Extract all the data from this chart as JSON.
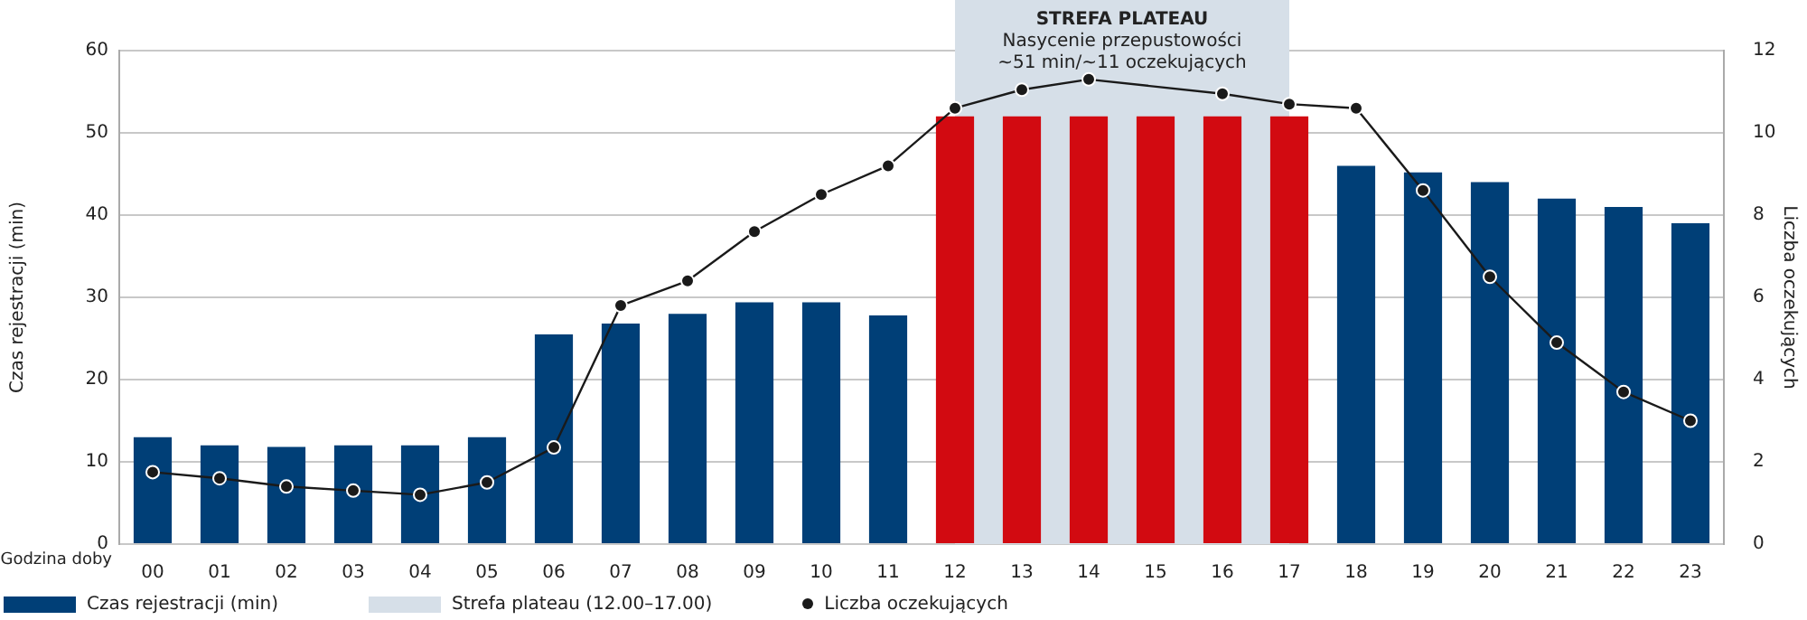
{
  "chart_data": {
    "type": "bar",
    "xlabel": "Godzina doby",
    "ylabel": "Czas rejestracji (min)",
    "y2label": "Liczba oczekujących",
    "categories": [
      "00",
      "01",
      "02",
      "03",
      "04",
      "05",
      "06",
      "07",
      "08",
      "09",
      "10",
      "11",
      "12",
      "13",
      "14",
      "15",
      "16",
      "17",
      "18",
      "19",
      "20",
      "21",
      "22",
      "23"
    ],
    "series": [
      {
        "name": "Czas rejestracji (min)",
        "color": "#003f77",
        "colors": [
          "#003f77",
          "#003f77",
          "#003f77",
          "#003f77",
          "#003f77",
          "#003f77",
          "#003f77",
          "#003f77",
          "#003f77",
          "#003f77",
          "#003f77",
          "#003f77",
          "#d20a11",
          "#d20a11",
          "#d20a11",
          "#d20a11",
          "#d20a11",
          "#d20a11",
          "#003f77",
          "#003f77",
          "#003f77",
          "#003f77",
          "#003f77",
          "#003f77"
        ],
        "values": [
          13,
          12,
          11.8,
          12,
          12,
          13,
          25.5,
          26.8,
          28,
          29.4,
          29.4,
          27.8,
          52,
          52,
          52,
          52,
          52,
          52,
          46,
          45.2,
          44,
          42,
          41,
          39
        ]
      },
      {
        "name": "Liczba oczekujących",
        "type": "line",
        "axis": "y2",
        "color": "#1a1a1a",
        "values": [
          1.75,
          1.6,
          1.4,
          1.3,
          1.2,
          1.5,
          2.35,
          5.8,
          6.4,
          7.6,
          8.5,
          9.2,
          10.6,
          11.05,
          11.3,
          null,
          10.95,
          10.7,
          10.6,
          8.6,
          6.5,
          4.9,
          3.7,
          3.0
        ]
      }
    ],
    "ylim": [
      0,
      60
    ],
    "yticks": [
      0,
      10,
      20,
      30,
      40,
      50,
      60
    ],
    "y2lim": [
      0,
      12
    ],
    "y2ticks": [
      0,
      2,
      4,
      6,
      8,
      10,
      12
    ],
    "bands": [
      {
        "axis": "x",
        "from": "12",
        "to": "17",
        "label": "Strefa plateau (12.00–17.00)",
        "color": "#d6dfe8"
      }
    ],
    "annotations": [
      "STREFA PLATEAU",
      "Nasycenie przepustowości",
      "~51 min/~11 oczekujących"
    ],
    "grid": "y",
    "legend": "bottom",
    "marker": "circle",
    "line_style": "solid"
  }
}
